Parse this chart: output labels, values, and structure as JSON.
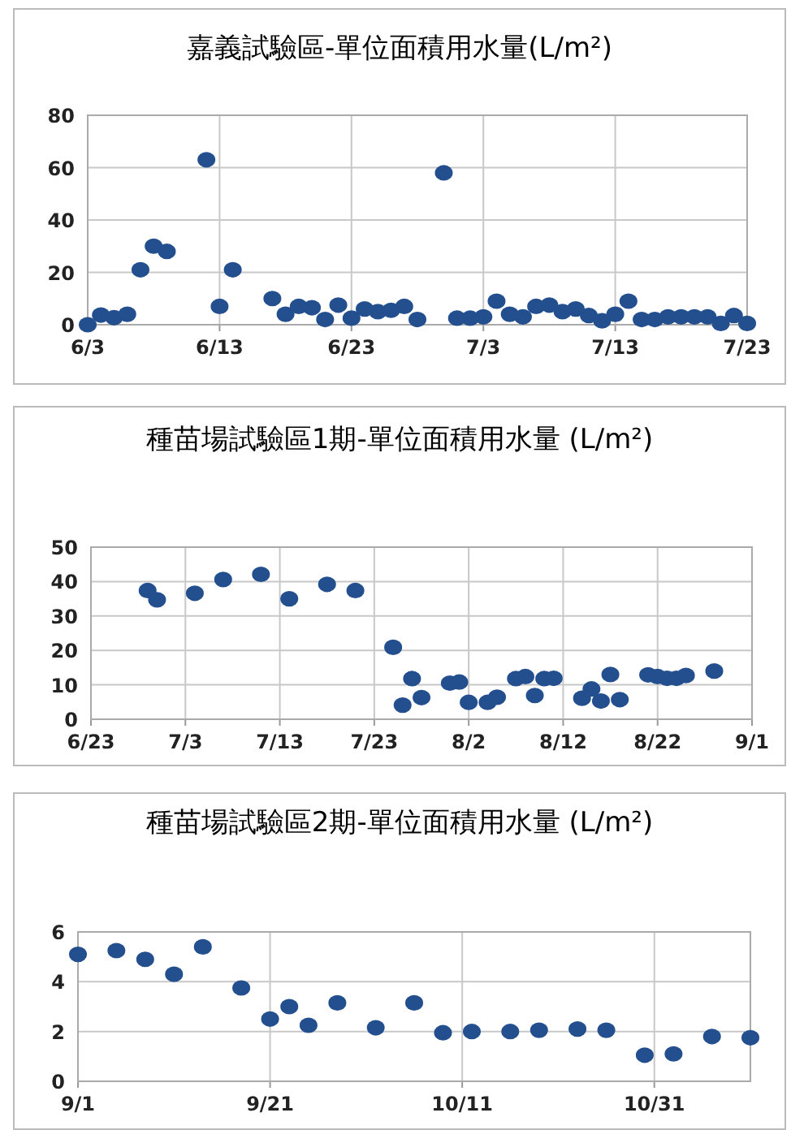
{
  "chart_data": [
    {
      "type": "scatter",
      "title": "嘉義試驗區-單位面積用水量(L/m²)",
      "color": "#234f8f",
      "marker": "circle",
      "grid": true,
      "x": [
        "--06-03",
        "--06-04",
        "--06-05",
        "--06-06",
        "--06-07",
        "--06-08",
        "--06-09",
        "--06-12",
        "--06-13",
        "--06-14",
        "--06-17",
        "--06-18",
        "--06-19",
        "--06-20",
        "--06-21",
        "--06-22",
        "--06-23",
        "--06-24",
        "--06-25",
        "--06-26",
        "--06-27",
        "--06-28",
        "--06-30",
        "--07-01",
        "--07-02",
        "--07-03",
        "--07-04",
        "--07-05",
        "--07-06",
        "--07-07",
        "--07-08",
        "--07-09",
        "--07-10",
        "--07-11",
        "--07-12",
        "--07-13",
        "--07-14",
        "--07-15",
        "--07-16",
        "--07-17",
        "--07-18",
        "--07-19",
        "--07-20",
        "--07-21",
        "--07-22",
        "--07-23"
      ],
      "values": [
        0,
        3.7,
        2.7,
        4,
        21,
        30,
        28,
        63,
        7,
        21,
        10,
        4,
        7,
        6.5,
        2,
        7.5,
        2.5,
        6,
        5,
        5.5,
        7,
        2,
        58,
        2.5,
        2.5,
        3,
        9,
        4,
        3,
        7,
        7.5,
        5,
        6,
        3.5,
        1.5,
        4,
        9,
        2,
        2,
        3,
        3,
        3,
        3,
        0.5,
        3.5,
        0.5
      ],
      "xlim": [
        "--06-03",
        "--07-23"
      ],
      "xticks": [
        {
          "value": "--06-03",
          "label": "6/3"
        },
        {
          "value": "--06-13",
          "label": "6/13"
        },
        {
          "value": "--06-23",
          "label": "6/23"
        },
        {
          "value": "--07-03",
          "label": "7/3"
        },
        {
          "value": "--07-13",
          "label": "7/13"
        },
        {
          "value": "--07-23",
          "label": "7/23"
        }
      ],
      "ylim": [
        0,
        80
      ],
      "yticks": [
        0,
        20,
        40,
        60,
        80
      ]
    },
    {
      "type": "scatter",
      "title": "種苗場試驗區1期-單位面積用水量 (L/m²)",
      "color": "#234f8f",
      "marker": "circle",
      "grid": true,
      "x": [
        "--06-29",
        "--06-30",
        "--07-04",
        "--07-07",
        "--07-11",
        "--07-14",
        "--07-18",
        "--07-21",
        "--07-25",
        "--07-26",
        "--07-27",
        "--07-28",
        "--07-31",
        "--08-01",
        "--08-02",
        "--08-04",
        "--08-05",
        "--08-07",
        "--08-08",
        "--08-09",
        "--08-10",
        "--08-11",
        "--08-14",
        "--08-15",
        "--08-16",
        "--08-17",
        "--08-18",
        "--08-21",
        "--08-22",
        "--08-23",
        "--08-24",
        "--08-25",
        "--08-28"
      ],
      "values": [
        37.4,
        34.7,
        36.6,
        40.6,
        42.1,
        35,
        39.2,
        37.4,
        20.9,
        4.1,
        11.8,
        6.3,
        10.5,
        10.8,
        4.9,
        4.9,
        6.4,
        11.8,
        12.4,
        6.9,
        11.8,
        11.9,
        6.1,
        8.8,
        5.3,
        13,
        5.7,
        12.9,
        12.4,
        11.9,
        11.9,
        12.7,
        14
      ],
      "xlim": [
        "--06-23",
        "--09-01"
      ],
      "xticks": [
        {
          "value": "--06-23",
          "label": "6/23"
        },
        {
          "value": "--07-03",
          "label": "7/3"
        },
        {
          "value": "--07-13",
          "label": "7/13"
        },
        {
          "value": "--07-23",
          "label": "7/23"
        },
        {
          "value": "--08-02",
          "label": "8/2"
        },
        {
          "value": "--08-12",
          "label": "8/12"
        },
        {
          "value": "--08-22",
          "label": "8/22"
        },
        {
          "value": "--09-01",
          "label": "9/1"
        }
      ],
      "ylim": [
        0,
        50
      ],
      "yticks": [
        0,
        10,
        20,
        30,
        40,
        50
      ]
    },
    {
      "type": "scatter",
      "title": "種苗場試驗區2期-單位面積用水量 (L/m²)",
      "color": "#234f8f",
      "marker": "circle",
      "grid": true,
      "x": [
        "--09-01",
        "--09-05",
        "--09-08",
        "--09-11",
        "--09-14",
        "--09-18",
        "--09-21",
        "--09-23",
        "--09-25",
        "--09-28",
        "--10-02",
        "--10-06",
        "--10-09",
        "--10-12",
        "--10-16",
        "--10-19",
        "--10-23",
        "--10-26",
        "--10-30",
        "--11-02",
        "--11-06",
        "--11-10"
      ],
      "values": [
        5.1,
        5.25,
        4.9,
        4.3,
        5.4,
        3.75,
        2.5,
        3,
        2.25,
        3.15,
        2.15,
        3.15,
        1.95,
        2,
        2,
        2.05,
        2.1,
        2.05,
        1.05,
        1.1,
        1.8,
        1.75
      ],
      "xlim": [
        "--09-01",
        "--11-10"
      ],
      "xticks": [
        {
          "value": "--09-01",
          "label": "9/1"
        },
        {
          "value": "--09-21",
          "label": "9/21"
        },
        {
          "value": "--10-11",
          "label": "10/11"
        },
        {
          "value": "--10-31",
          "label": "10/31"
        }
      ],
      "ylim": [
        0,
        6
      ],
      "yticks": [
        0,
        2,
        4,
        6
      ]
    }
  ]
}
